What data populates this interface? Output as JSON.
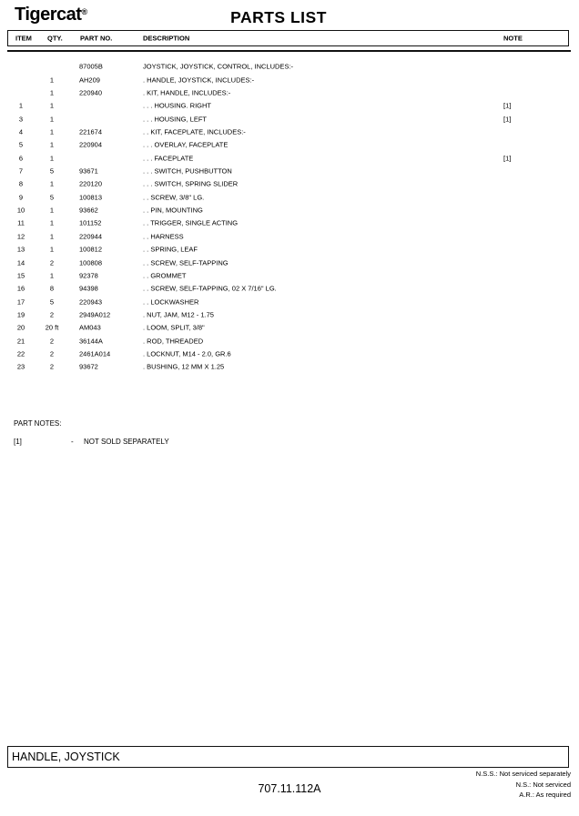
{
  "header": {
    "logo": "Tigercat",
    "registered_mark": "®",
    "title": "PARTS LIST"
  },
  "table": {
    "columns": {
      "item": "ITEM",
      "qty": "QTY.",
      "part_no": "PART NO.",
      "description": "DESCRIPTION",
      "note": "NOTE"
    },
    "rows": [
      {
        "item": "",
        "qty": "",
        "part": "87005B",
        "desc": "JOYSTICK, JOYSTICK, CONTROL, INCLUDES:-",
        "note": ""
      },
      {
        "item": "",
        "qty": "1",
        "part": "AH209",
        "desc": ". HANDLE, JOYSTICK, INCLUDES:-",
        "note": ""
      },
      {
        "item": "",
        "qty": "1",
        "part": "220940",
        "desc": ". KIT, HANDLE, INCLUDES:-",
        "note": ""
      },
      {
        "item": "1",
        "qty": "1",
        "part": "",
        "desc": ". . . HOUSING. RIGHT",
        "note": "[1]"
      },
      {
        "item": "3",
        "qty": "1",
        "part": "",
        "desc": ". . . HOUSING, LEFT",
        "note": "[1]"
      },
      {
        "item": "4",
        "qty": "1",
        "part": "221674",
        "desc": ". . KIT, FACEPLATE, INCLUDES:-",
        "note": ""
      },
      {
        "item": "5",
        "qty": "1",
        "part": "220904",
        "desc": ". . . OVERLAY, FACEPLATE",
        "note": ""
      },
      {
        "item": "6",
        "qty": "1",
        "part": "",
        "desc": ". . . FACEPLATE",
        "note": "[1]"
      },
      {
        "item": "7",
        "qty": "5",
        "part": "93671",
        "desc": ". . . SWITCH, PUSHBUTTON",
        "note": ""
      },
      {
        "item": "8",
        "qty": "1",
        "part": "220120",
        "desc": ". . . SWITCH, SPRING SLIDER",
        "note": ""
      },
      {
        "item": "9",
        "qty": "5",
        "part": "100813",
        "desc": ". . SCREW, 3/8\" LG.",
        "note": ""
      },
      {
        "item": "10",
        "qty": "1",
        "part": "93662",
        "desc": ". . PIN, MOUNTING",
        "note": ""
      },
      {
        "item": "11",
        "qty": "1",
        "part": "101152",
        "desc": ". . TRIGGER, SINGLE ACTING",
        "note": ""
      },
      {
        "item": "12",
        "qty": "1",
        "part": "220944",
        "desc": ". . HARNESS",
        "note": ""
      },
      {
        "item": "13",
        "qty": "1",
        "part": "100812",
        "desc": ". . SPRING, LEAF",
        "note": ""
      },
      {
        "item": "14",
        "qty": "2",
        "part": "100808",
        "desc": ". . SCREW, SELF-TAPPING",
        "note": ""
      },
      {
        "item": "15",
        "qty": "1",
        "part": "92378",
        "desc": ". . GROMMET",
        "note": ""
      },
      {
        "item": "16",
        "qty": "8",
        "part": "94398",
        "desc": ". . SCREW, SELF-TAPPING, 02 X 7/16\" LG.",
        "note": ""
      },
      {
        "item": "17",
        "qty": "5",
        "part": "220943",
        "desc": ". . LOCKWASHER",
        "note": ""
      },
      {
        "item": "19",
        "qty": "2",
        "part": "2949A012",
        "desc": ". NUT, JAM, M12 - 1.75",
        "note": ""
      },
      {
        "item": "20",
        "qty": "20 ft",
        "part": "AM043",
        "desc": ". LOOM, SPLIT, 3/8\"",
        "note": ""
      },
      {
        "item": "21",
        "qty": "2",
        "part": "36144A",
        "desc": ". ROD, THREADED",
        "note": ""
      },
      {
        "item": "22",
        "qty": "2",
        "part": "2461A014",
        "desc": ". LOCKNUT, M14 - 2.0, GR.6",
        "note": ""
      },
      {
        "item": "23",
        "qty": "2",
        "part": "93672",
        "desc": ". BUSHING, 12 MM X 1.25",
        "note": ""
      }
    ]
  },
  "part_notes": {
    "heading": "PART NOTES:",
    "notes": [
      {
        "ref": "[1]",
        "separator": "-",
        "text": "NOT SOLD SEPARATELY"
      }
    ]
  },
  "footer": {
    "section_title": "HANDLE, JOYSTICK",
    "document_number": "707.11.112A",
    "legend": [
      "N.S.S.: Not serviced separately",
      "N.S.: Not serviced",
      "A.R.: As required"
    ]
  },
  "colors": {
    "text": "#000000",
    "background": "#ffffff",
    "border": "#111111"
  }
}
